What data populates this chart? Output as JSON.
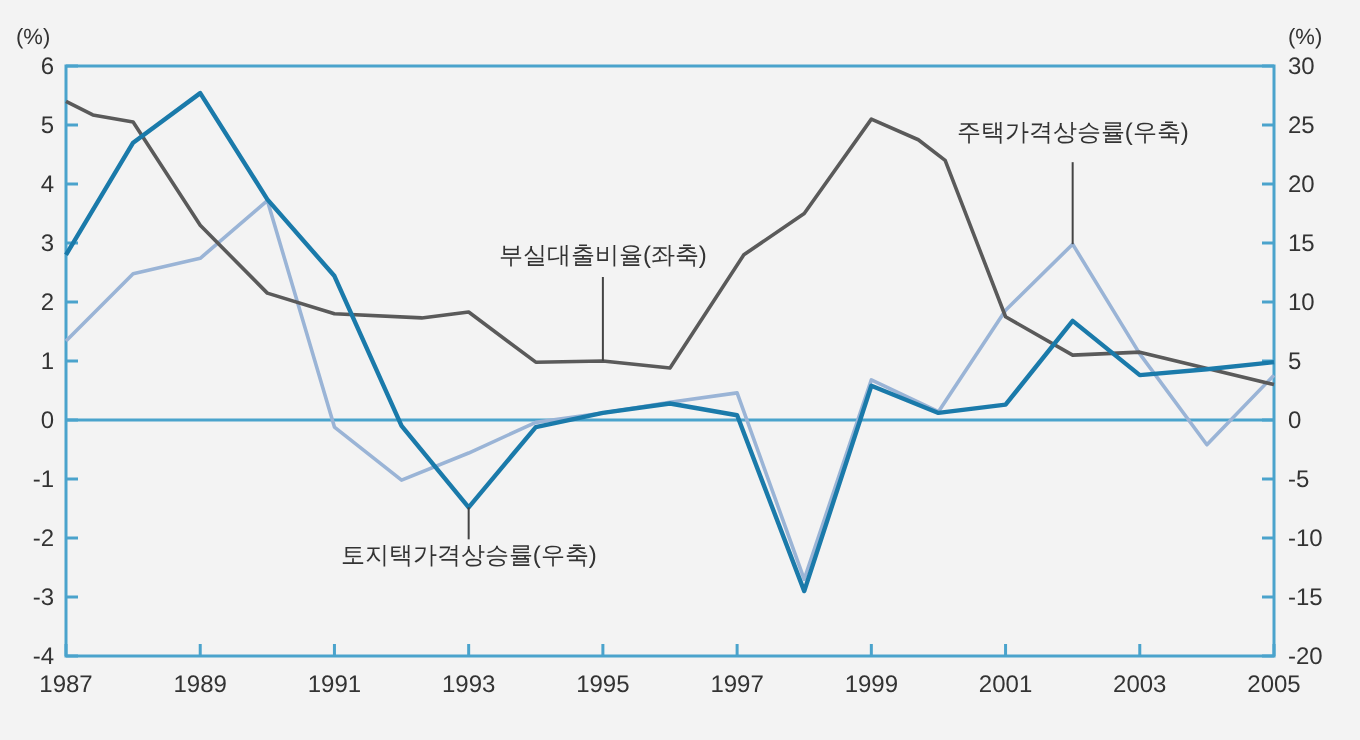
{
  "chart_data": {
    "type": "line",
    "ylabel": "(%)",
    "y2label": "(%)",
    "x": [
      1987,
      1988,
      1989,
      1990,
      1991,
      1992,
      1993,
      1994,
      1995,
      1996,
      1997,
      1998,
      1999,
      2000,
      2001,
      2002,
      2003,
      2004,
      2005
    ],
    "xlim": [
      1987,
      2005
    ],
    "xticks": [
      1987,
      1989,
      1991,
      1993,
      1995,
      1997,
      1999,
      2001,
      2003,
      2005
    ],
    "ylim": [
      -4,
      6
    ],
    "yticks": [
      -4,
      -3,
      -2,
      -1,
      0,
      1,
      2,
      3,
      4,
      5,
      6
    ],
    "y2lim": [
      -20,
      30
    ],
    "y2ticks": [
      -20,
      -15,
      -10,
      -5,
      0,
      5,
      10,
      15,
      20,
      25,
      30
    ],
    "legend": false,
    "grid": false,
    "marker": "none",
    "line_style": "solid",
    "ref_lines": [
      {
        "axis": "y",
        "value": 0,
        "color": "#4aa3cc"
      }
    ],
    "series": [
      {
        "name": "부실대출비율(좌축)",
        "color": "#5a5a5a",
        "x": [
          1987,
          1987.4,
          1988,
          1989,
          1990,
          1991,
          1992.3,
          1993,
          1994,
          1995,
          1996,
          1997.1,
          1998,
          1999,
          1999.7,
          2000.1,
          2001,
          2002,
          2003,
          2005
        ],
        "values": [
          5.4,
          5.17,
          5.05,
          3.3,
          2.15,
          1.8,
          1.73,
          1.83,
          0.98,
          1.0,
          0.88,
          2.8,
          3.5,
          5.1,
          4.75,
          4.4,
          1.75,
          1.1,
          1.15,
          0.6
        ]
      },
      {
        "name": "토지택가격상승률(우축)",
        "color": "#1a7aaa",
        "axis": "y2",
        "values": [
          14,
          23.5,
          27.7,
          18.7,
          12.2,
          -0.5,
          -7.4,
          -0.6,
          0.6,
          1.4,
          0.4,
          -14.5,
          2.9,
          0.6,
          1.3,
          8.4,
          3.8,
          4.3,
          4.9
        ]
      },
      {
        "name": "주택가격상승률(우축)",
        "color": "#9ab4d6",
        "axis": "y2",
        "values": [
          6.7,
          12.4,
          13.7,
          18.6,
          -0.6,
          -5.1,
          -2.8,
          -0.2,
          0.6,
          1.5,
          2.3,
          -13.5,
          3.4,
          0.7,
          9.3,
          14.9,
          5.6,
          -2.1,
          3.8
        ]
      }
    ]
  }
}
